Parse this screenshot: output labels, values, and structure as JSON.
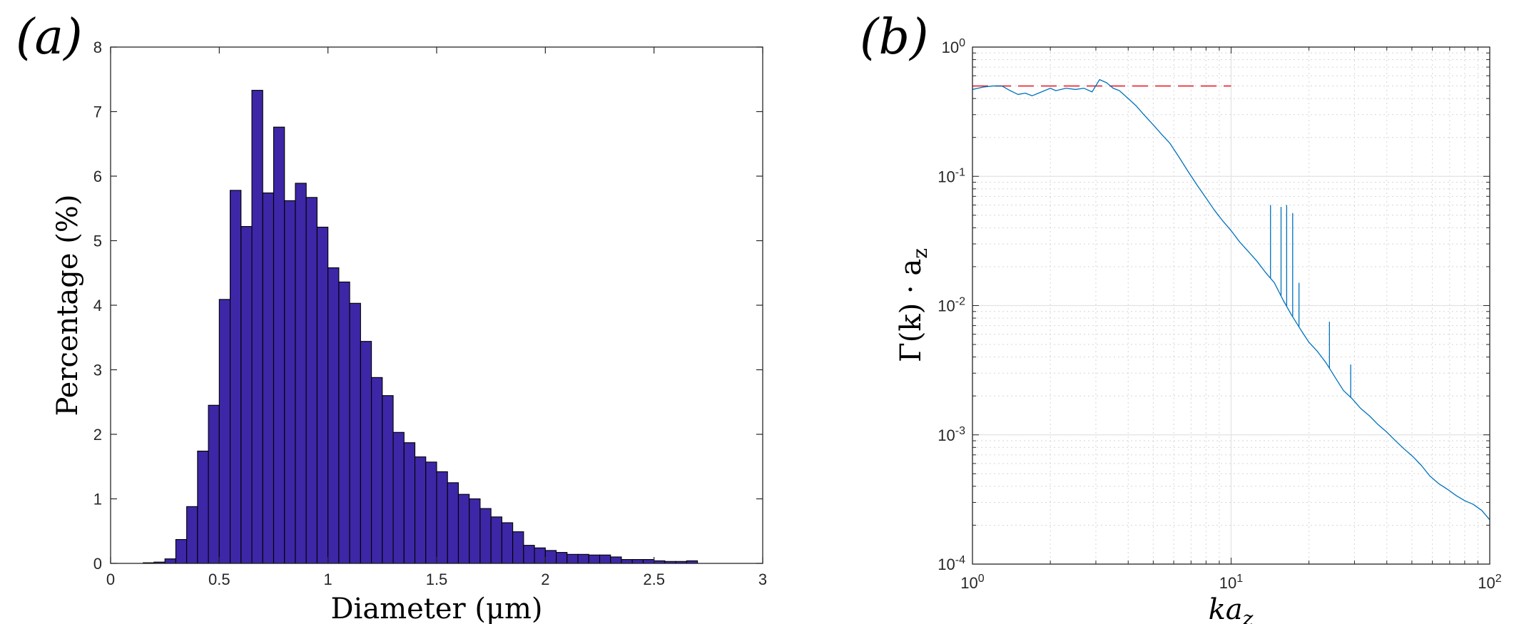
{
  "colors": {
    "bar_fill": "#3d27a6",
    "bar_edge": "#000000",
    "spectrum_line": "#0072bd",
    "reference_line": "#e8202a",
    "grid": "#e3e3e3",
    "axis": "#262626"
  },
  "chart_data": [
    {
      "panel_label": "(a)",
      "type": "bar",
      "xlabel": "Diameter (μm)",
      "ylabel": "Percentage (%)",
      "xlim": [
        0,
        3
      ],
      "ylim": [
        0,
        8
      ],
      "xticks": [
        0,
        0.5,
        1,
        1.5,
        2,
        2.5,
        3
      ],
      "xtick_labels": [
        "0",
        "0.5",
        "1",
        "1.5",
        "2",
        "2.5",
        "3"
      ],
      "yticks": [
        0,
        1,
        2,
        3,
        4,
        5,
        6,
        7,
        8
      ],
      "ytick_labels": [
        "0",
        "1",
        "2",
        "3",
        "4",
        "5",
        "6",
        "7",
        "8"
      ],
      "bin_start": 0.15,
      "bin_width": 0.05,
      "values": [
        0.01,
        0.02,
        0.07,
        0.37,
        0.88,
        1.74,
        2.45,
        4.09,
        5.78,
        5.22,
        7.33,
        5.74,
        6.76,
        5.62,
        5.89,
        5.67,
        5.21,
        4.58,
        4.36,
        4.03,
        3.44,
        2.88,
        2.6,
        2.03,
        1.87,
        1.65,
        1.57,
        1.42,
        1.25,
        1.07,
        1.0,
        0.85,
        0.72,
        0.63,
        0.49,
        0.28,
        0.24,
        0.2,
        0.17,
        0.14,
        0.14,
        0.13,
        0.13,
        0.1,
        0.06,
        0.06,
        0.06,
        0.04,
        0.03,
        0.03,
        0.04
      ]
    },
    {
      "panel_label": "(b)",
      "type": "line",
      "xscale": "log",
      "yscale": "log",
      "xlabel": "ka_z",
      "ylabel": "Γ(k) · a_z",
      "xlim": [
        1,
        100
      ],
      "ylim": [
        0.0001,
        1
      ],
      "xticks": [
        1,
        10,
        100
      ],
      "xtick_labels": [
        {
          "base": "10",
          "exp": "0"
        },
        {
          "base": "10",
          "exp": "1"
        },
        {
          "base": "10",
          "exp": "2"
        }
      ],
      "yticks": [
        0.0001,
        0.001,
        0.01,
        0.1,
        1
      ],
      "ytick_labels": [
        {
          "base": "10",
          "exp": "-4"
        },
        {
          "base": "10",
          "exp": "-3"
        },
        {
          "base": "10",
          "exp": "-2"
        },
        {
          "base": "10",
          "exp": "-1"
        },
        {
          "base": "10",
          "exp": "0"
        }
      ],
      "grid": "on (major and minor)",
      "series": [
        {
          "name": "spectrum",
          "x": [
            1.0,
            1.1,
            1.2,
            1.3,
            1.4,
            1.5,
            1.6,
            1.7,
            1.8,
            2.0,
            2.1,
            2.3,
            2.5,
            2.7,
            2.9,
            3.1,
            3.3,
            3.5,
            3.7,
            4.0,
            4.3,
            4.6,
            5.0,
            5.4,
            5.8,
            6.3,
            6.8,
            7.4,
            8.0,
            8.6,
            9.3,
            10.0,
            10.8,
            11.7,
            12.6,
            13.6,
            14.7,
            15.9,
            17.1,
            18.5,
            20.0,
            21.6,
            23.3,
            25.2,
            27.2,
            29.4,
            31.7,
            34.3,
            37.0,
            40.0,
            43.2,
            46.6,
            50.4,
            54.4,
            58.7,
            63.4,
            68.5,
            74.0,
            79.9,
            86.3,
            93.2,
            100.0
          ],
          "y": [
            0.47,
            0.49,
            0.5,
            0.5,
            0.46,
            0.43,
            0.44,
            0.42,
            0.44,
            0.48,
            0.46,
            0.48,
            0.47,
            0.48,
            0.45,
            0.56,
            0.53,
            0.48,
            0.46,
            0.4,
            0.35,
            0.3,
            0.25,
            0.21,
            0.18,
            0.14,
            0.11,
            0.085,
            0.068,
            0.055,
            0.045,
            0.038,
            0.031,
            0.026,
            0.022,
            0.018,
            0.015,
            0.011,
            0.0085,
            0.0066,
            0.0052,
            0.0044,
            0.0036,
            0.0028,
            0.0022,
            0.0019,
            0.0016,
            0.0014,
            0.0012,
            0.00105,
            0.0009,
            0.00078,
            0.00068,
            0.00058,
            0.00048,
            0.00042,
            0.00038,
            0.00034,
            0.00031,
            0.00029,
            0.00026,
            0.00022
          ]
        },
        {
          "name": "spikes",
          "x": [
            14.2,
            15.6,
            16.4,
            17.3,
            18.3,
            24.0,
            29.0
          ],
          "y": [
            0.06,
            0.058,
            0.06,
            0.052,
            0.015,
            0.0075,
            0.0035
          ]
        },
        {
          "name": "plateau reference (dashed)",
          "x": [
            1,
            10
          ],
          "y": [
            0.5,
            0.5
          ]
        }
      ]
    }
  ]
}
